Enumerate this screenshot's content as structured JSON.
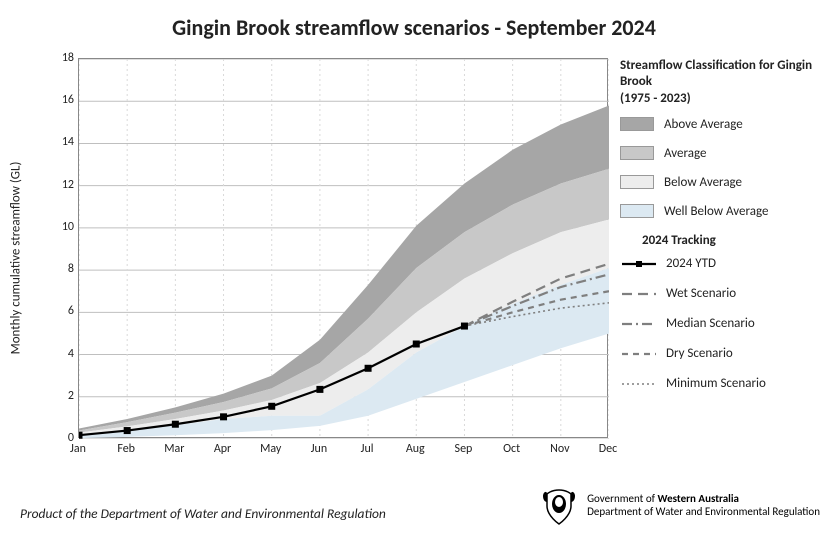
{
  "title": "Gingin Brook streamflow scenarios - September 2024",
  "title_fontsize": 22,
  "ylabel": "Monthly cumulative streamflow (GL)",
  "footer": "Product of the Department of Water and Environmental Regulation",
  "gov": {
    "line1_prefix": "Government of ",
    "line1_bold": "Western Australia",
    "line2": "Department of Water and Environmental Regulation"
  },
  "legend": {
    "classification_title": "Streamflow Classification for Gingin Brook",
    "classification_years": "(1975 - 2023)",
    "bands": [
      {
        "label": "Above Average",
        "color": "#a6a6a6"
      },
      {
        "label": "Average",
        "color": "#c8c8c8"
      },
      {
        "label": "Below Average",
        "color": "#ededed"
      },
      {
        "label": "Well Below Average",
        "color": "#dce9f2"
      }
    ],
    "tracking_title": "2024 Tracking",
    "series": [
      {
        "key": "ytd",
        "label": "2024 YTD"
      },
      {
        "key": "wet",
        "label": "Wet Scenario"
      },
      {
        "key": "median",
        "label": "Median Scenario"
      },
      {
        "key": "dry",
        "label": "Dry Scenario"
      },
      {
        "key": "min",
        "label": "Minimum Scenario"
      }
    ]
  },
  "chart": {
    "type": "area+line",
    "background_color": "#ffffff",
    "grid_color": "#bfbfbf",
    "border_color": "#888888",
    "ylim": [
      0,
      18
    ],
    "ytick_step": 2,
    "x_categories": [
      "Jan",
      "Feb",
      "Mar",
      "Apr",
      "May",
      "Jun",
      "Jul",
      "Aug",
      "Sep",
      "Oct",
      "Nov",
      "Dec"
    ],
    "bands": {
      "above_average_top": [
        0.5,
        0.95,
        1.5,
        2.15,
        3.0,
        4.7,
        7.3,
        10.1,
        12.1,
        13.7,
        14.9,
        15.8
      ],
      "average_top": [
        0.4,
        0.8,
        1.25,
        1.75,
        2.4,
        3.6,
        5.7,
        8.1,
        9.8,
        11.1,
        12.1,
        12.8
      ],
      "below_average_top": [
        0.3,
        0.6,
        0.95,
        1.35,
        1.85,
        2.65,
        4.1,
        6.0,
        7.6,
        8.8,
        9.8,
        10.4
      ],
      "well_below_avg_top": [
        0.2,
        0.4,
        0.65,
        0.95,
        1.1,
        1.1,
        2.35,
        4.1,
        5.35,
        6.4,
        7.3,
        8.1
      ],
      "floor": [
        0.04,
        0.1,
        0.18,
        0.28,
        0.42,
        0.62,
        1.1,
        1.9,
        2.7,
        3.5,
        4.3,
        5.0
      ]
    },
    "ytd": {
      "values": [
        0.18,
        0.4,
        0.7,
        1.05,
        1.55,
        2.35,
        3.35,
        4.5,
        5.35
      ],
      "color": "#000000",
      "line_width": 2.2,
      "marker": "square",
      "marker_size": 6
    },
    "scenarios": {
      "wet": {
        "start_index": 8,
        "values": [
          5.35,
          6.5,
          7.6,
          8.3
        ],
        "color": "#7f7f7f",
        "dash": "10,6",
        "width": 2.2
      },
      "median": {
        "start_index": 8,
        "values": [
          5.35,
          6.3,
          7.2,
          7.8
        ],
        "color": "#7f7f7f",
        "dash": "10,4,2,4",
        "width": 2.2
      },
      "dry": {
        "start_index": 8,
        "values": [
          5.35,
          6.0,
          6.6,
          7.0
        ],
        "color": "#7f7f7f",
        "dash": "6,5",
        "width": 2.2
      },
      "min": {
        "start_index": 8,
        "values": [
          5.35,
          5.8,
          6.2,
          6.45
        ],
        "color": "#7f7f7f",
        "dash": "2,3",
        "width": 1.6
      }
    }
  }
}
